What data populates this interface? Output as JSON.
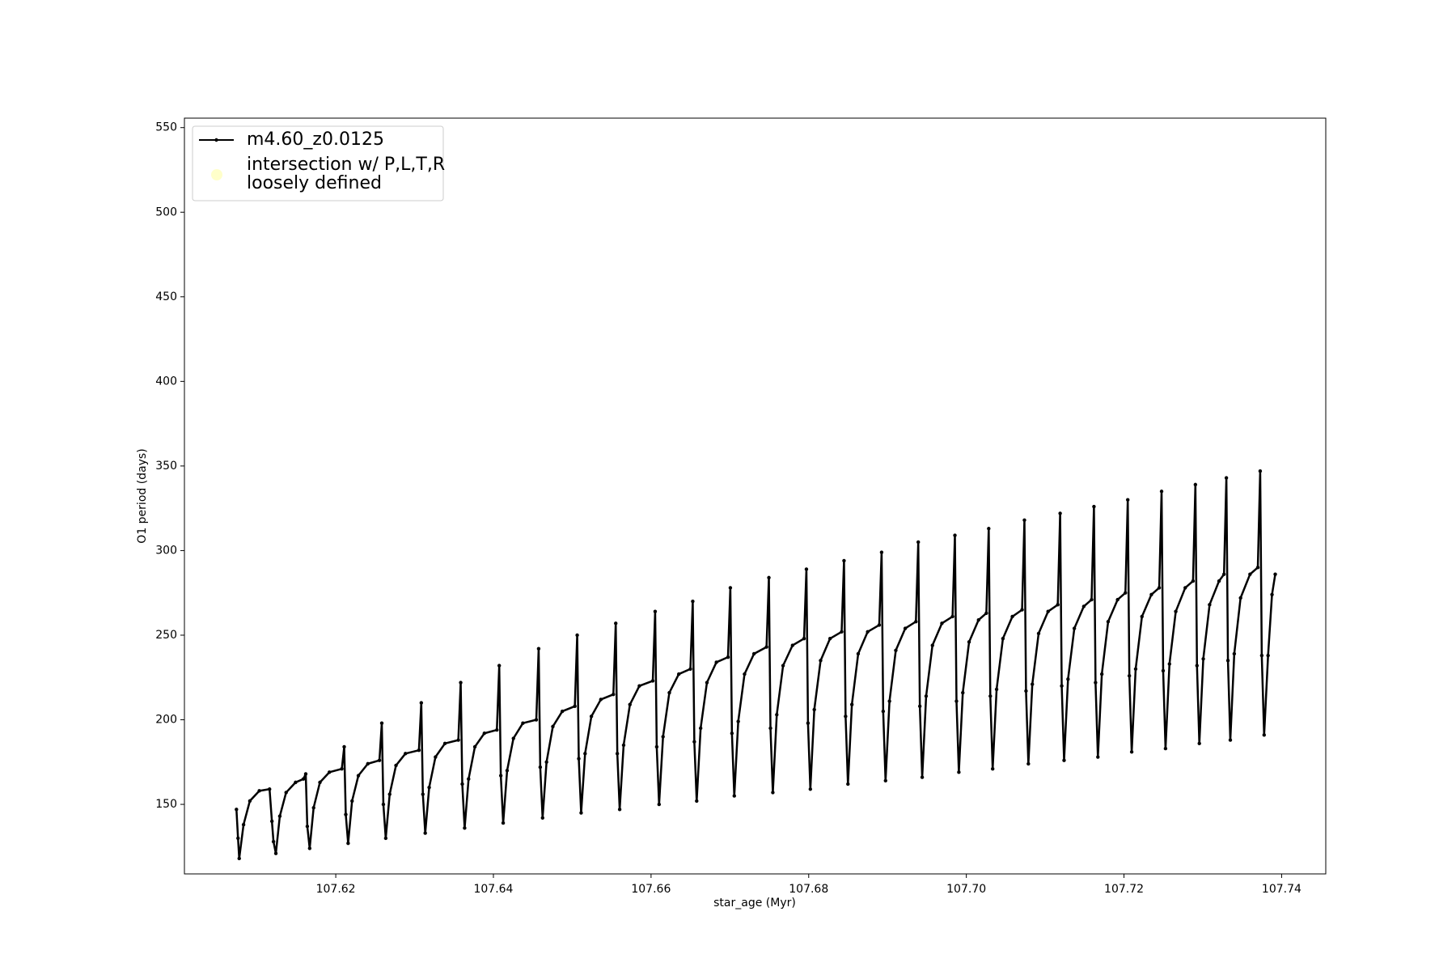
{
  "chart_data": {
    "type": "line",
    "xlabel": "star_age (Myr)",
    "ylabel": "O1 period (days)",
    "xlim": [
      107.6008,
      107.7456
    ],
    "ylim": [
      108.9,
      555.6
    ],
    "xticks": [
      107.62,
      107.64,
      107.66,
      107.68,
      {
        "value": 107.7,
        "label": "107.70"
      },
      107.72,
      107.74
    ],
    "yticks": [
      150,
      200,
      250,
      300,
      350,
      400,
      450,
      500,
      550
    ],
    "legend": "upper left",
    "series": [
      {
        "name": "m4.60_z0.0125",
        "color": "#000000",
        "type": "line",
        "x": [
          107.6074,
          107.6076,
          107.60775,
          107.6083,
          107.6091,
          107.6103,
          107.6116,
          107.6119,
          107.6121,
          107.6124,
          107.6129,
          107.6137,
          107.6149,
          107.6159,
          107.61619,
          107.61639,
          107.61669,
          107.61719,
          107.61799,
          107.61919,
          107.62077,
          107.62107,
          107.62127,
          107.62157,
          107.62207,
          107.62287,
          107.62407,
          107.62554,
          107.62584,
          107.62604,
          107.62634,
          107.62684,
          107.62764,
          107.62884,
          107.63055,
          107.63085,
          107.63105,
          107.63135,
          107.63185,
          107.63265,
          107.63385,
          107.63555,
          107.63585,
          107.63605,
          107.63635,
          107.63685,
          107.63765,
          107.63885,
          107.64044,
          107.64074,
          107.64094,
          107.64124,
          107.64174,
          107.64254,
          107.64374,
          107.64544,
          107.64574,
          107.64594,
          107.64624,
          107.64674,
          107.64754,
          107.64874,
          107.65033,
          107.65063,
          107.65083,
          107.65113,
          107.65163,
          107.65243,
          107.65363,
          107.65522,
          107.65552,
          107.65572,
          107.65602,
          107.65652,
          107.65732,
          107.65852,
          107.66022,
          107.66052,
          107.66072,
          107.66102,
          107.66152,
          107.66232,
          107.66352,
          107.66499,
          107.66529,
          107.66549,
          107.66579,
          107.66629,
          107.66709,
          107.66829,
          107.66976,
          107.67006,
          107.67026,
          107.67056,
          107.67106,
          107.67186,
          107.67306,
          107.67465,
          107.67495,
          107.67515,
          107.67545,
          107.67595,
          107.67675,
          107.67795,
          107.67941,
          107.67971,
          107.67991,
          107.68021,
          107.68071,
          107.68151,
          107.68271,
          107.68418,
          107.68448,
          107.68468,
          107.68498,
          107.68548,
          107.68628,
          107.68748,
          107.68895,
          107.68925,
          107.68945,
          107.68975,
          107.69025,
          107.69105,
          107.69225,
          107.6936,
          107.6939,
          107.6941,
          107.6944,
          107.6949,
          107.6957,
          107.6969,
          107.69825,
          107.69855,
          107.69875,
          107.69905,
          107.69955,
          107.70035,
          107.70155,
          107.70254,
          107.70284,
          107.70304,
          107.70334,
          107.70384,
          107.70464,
          107.70584,
          107.70707,
          107.70737,
          107.70757,
          107.70787,
          107.70837,
          107.70917,
          107.71037,
          107.7116,
          107.7119,
          107.7121,
          107.7124,
          107.7129,
          107.7137,
          107.7149,
          107.71589,
          107.71619,
          107.71639,
          107.71669,
          107.71719,
          107.71799,
          107.71919,
          107.72018,
          107.72048,
          107.72068,
          107.72098,
          107.72148,
          107.72228,
          107.72348,
          107.72447,
          107.72477,
          107.72497,
          107.72527,
          107.72577,
          107.72657,
          107.72777,
          107.72876,
          107.72906,
          107.72926,
          107.72956,
          107.73006,
          107.73086,
          107.73206,
          107.73269,
          107.73299,
          107.73319,
          107.73349,
          107.73399,
          107.73479,
          107.73599,
          107.73698,
          107.73728,
          107.73748,
          107.73778,
          107.73828,
          107.73878,
          107.73919
        ],
        "values": [
          147,
          130,
          118,
          138,
          152,
          158,
          159,
          140,
          128,
          121,
          143,
          157,
          163,
          165,
          168,
          137,
          124,
          148,
          163,
          169,
          171,
          184,
          144,
          127,
          152,
          167,
          174,
          176,
          198,
          150,
          130,
          156,
          173,
          180,
          182,
          210,
          156,
          133,
          160,
          178,
          186,
          188,
          222,
          162,
          136,
          165,
          184,
          192,
          194,
          232,
          167,
          139,
          170,
          189,
          198,
          200,
          242,
          172,
          142,
          175,
          196,
          205,
          208,
          250,
          177,
          145,
          180,
          202,
          212,
          215,
          257,
          180,
          147,
          185,
          209,
          220,
          223,
          264,
          184,
          150,
          190,
          216,
          227,
          230,
          270,
          187,
          152,
          195,
          222,
          234,
          237,
          278,
          192,
          155,
          199,
          227,
          239,
          243,
          284,
          195,
          157,
          203,
          232,
          244,
          248,
          289,
          198,
          159,
          206,
          235,
          248,
          252,
          294,
          202,
          162,
          209,
          239,
          252,
          256,
          299,
          205,
          164,
          211,
          241,
          254,
          258,
          305,
          208,
          166,
          214,
          244,
          257,
          261,
          309,
          211,
          169,
          216,
          246,
          259,
          263,
          313,
          214,
          171,
          218,
          248,
          261,
          265,
          318,
          217,
          174,
          221,
          251,
          264,
          268,
          322,
          220,
          176,
          224,
          254,
          267,
          271,
          326,
          222,
          178,
          227,
          258,
          271,
          275,
          330,
          226,
          181,
          230,
          261,
          274,
          278,
          335,
          229,
          183,
          233,
          264,
          278,
          282,
          339,
          232,
          186,
          236,
          268,
          282,
          286,
          343,
          235,
          188,
          239,
          272,
          286,
          290,
          347,
          238,
          191,
          238,
          274,
          286
        ]
      },
      {
        "name": "intersection w/ P,L,T,R\nloosely defined",
        "color": "#ffffb3",
        "type": "scatter",
        "x": [],
        "values": []
      }
    ]
  }
}
